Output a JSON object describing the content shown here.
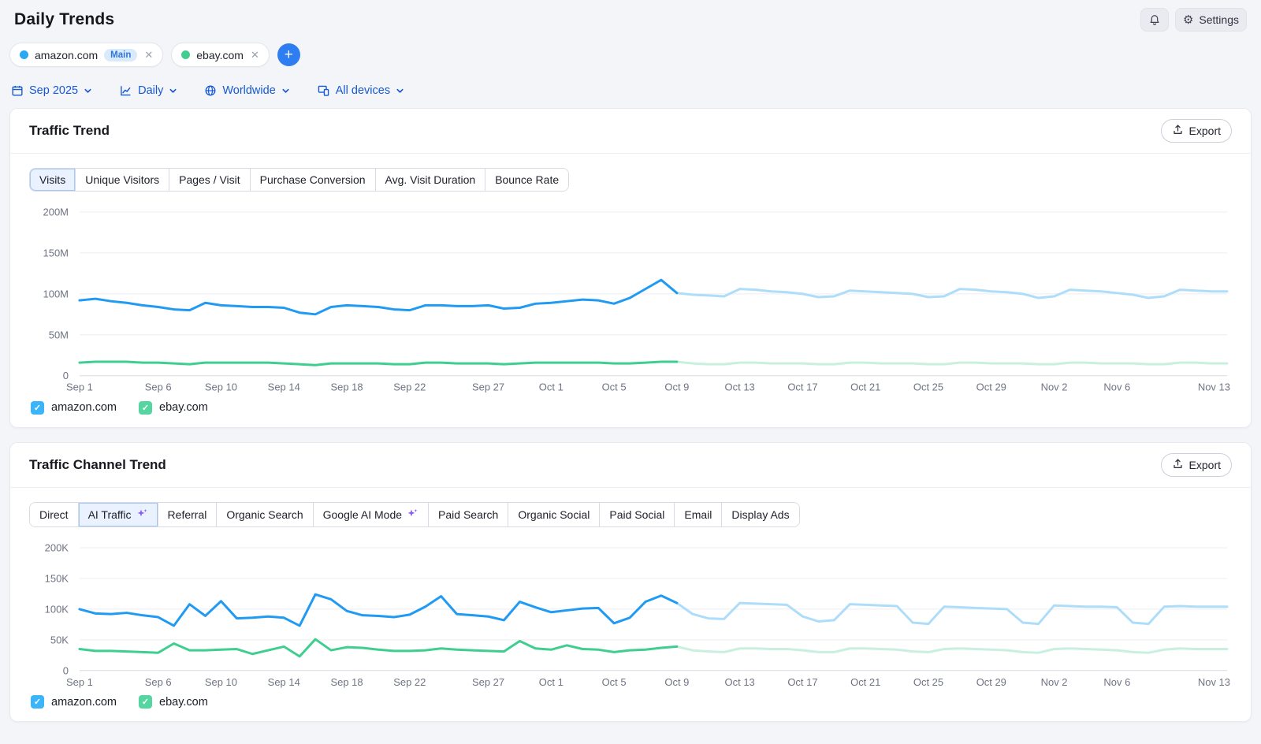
{
  "header": {
    "title": "Daily Trends",
    "settings_label": "Settings"
  },
  "chips": {
    "items": [
      {
        "label": "amazon.com",
        "dot_color": "#29a8f3",
        "badge": "Main",
        "close": "✕"
      },
      {
        "label": "ebay.com",
        "dot_color": "#41cd8f",
        "close": "✕"
      }
    ],
    "add_label": "+"
  },
  "filters": [
    {
      "icon": "calendar-icon",
      "label": "Sep 2025"
    },
    {
      "icon": "line-chart-icon",
      "label": "Daily"
    },
    {
      "icon": "globe-icon",
      "label": "Worldwide"
    },
    {
      "icon": "devices-icon",
      "label": "All devices"
    }
  ],
  "colors": {
    "accent_link_blue": "#1458d6",
    "add_button_blue": "#2e7ef2",
    "amazon_line": "#209af2",
    "amazon_forecast": "#aeddfa",
    "ebay_line": "#3fce90",
    "ebay_forecast": "#c9efde",
    "selected_tab_bg": "#e9f2fe",
    "sparkle_purple": "#8b5cf6",
    "main_badge_bg": "#d9eafc"
  },
  "card1": {
    "title": "Traffic Trend",
    "export_label": "Export",
    "tabs": [
      {
        "label": "Visits",
        "selected": true
      },
      {
        "label": "Unique Visitors",
        "selected": false
      },
      {
        "label": "Pages / Visit",
        "selected": false
      },
      {
        "label": "Purchase Conversion",
        "selected": false
      },
      {
        "label": "Avg. Visit Duration",
        "selected": false
      },
      {
        "label": "Bounce Rate",
        "selected": false
      }
    ]
  },
  "card2": {
    "title": "Traffic Channel Trend",
    "export_label": "Export",
    "tabs": [
      {
        "label": "Direct",
        "selected": false,
        "sparkle": false
      },
      {
        "label": "AI Traffic",
        "selected": true,
        "sparkle": true
      },
      {
        "label": "Referral",
        "selected": false,
        "sparkle": false
      },
      {
        "label": "Organic Search",
        "selected": false,
        "sparkle": false
      },
      {
        "label": "Google AI Mode",
        "selected": false,
        "sparkle": true
      },
      {
        "label": "Paid Search",
        "selected": false,
        "sparkle": false
      },
      {
        "label": "Organic Social",
        "selected": false,
        "sparkle": false
      },
      {
        "label": "Paid Social",
        "selected": false,
        "sparkle": false
      },
      {
        "label": "Email",
        "selected": false,
        "sparkle": false
      },
      {
        "label": "Display Ads",
        "selected": false,
        "sparkle": false
      }
    ]
  },
  "chart_data": [
    {
      "type": "line",
      "title": "Traffic Trend — Visits (daily)",
      "unit": "M",
      "ylim": [
        0,
        200
      ],
      "yticks": [
        0,
        50,
        100,
        150,
        200
      ],
      "ytick_labels": [
        "0",
        "50M",
        "100M",
        "150M",
        "200M"
      ],
      "x_range": [
        "Sep 1",
        "Nov 13"
      ],
      "xtick_labels": [
        "Sep 1",
        "Sep 6",
        "Sep 10",
        "Sep 14",
        "Sep 18",
        "Sep 22",
        "Sep 27",
        "Oct 1",
        "Oct 5",
        "Oct 9",
        "Oct 13",
        "Oct 17",
        "Oct 21",
        "Oct 25",
        "Oct 29",
        "Nov 2",
        "Nov 6",
        "Nov 13"
      ],
      "xtick_day_index": [
        0,
        5,
        9,
        13,
        17,
        21,
        26,
        30,
        34,
        38,
        42,
        46,
        50,
        54,
        58,
        62,
        66,
        73
      ],
      "forecast_from_index": 38,
      "grid": true,
      "legend_position": "bottom",
      "series": [
        {
          "name": "amazon.com",
          "color": "#209af2",
          "forecast_color": "#aeddfa",
          "values": [
            92,
            94,
            91,
            89,
            86,
            84,
            81,
            80,
            89,
            86,
            85,
            84,
            84,
            83,
            77,
            75,
            84,
            86,
            85,
            84,
            81,
            80,
            86,
            86,
            85,
            85,
            86,
            82,
            83,
            88,
            89,
            91,
            93,
            92,
            88,
            95,
            106,
            117,
            101,
            99,
            98,
            97,
            106,
            105,
            103,
            102,
            100,
            96,
            97,
            104,
            103,
            102,
            101,
            100,
            96,
            97,
            106,
            105,
            103,
            102,
            100,
            95,
            97,
            105,
            104,
            103,
            101,
            99,
            95,
            97,
            105,
            104,
            103,
            103
          ]
        },
        {
          "name": "ebay.com",
          "color": "#3fce90",
          "forecast_color": "#c9efde",
          "values": [
            16,
            17,
            17,
            17,
            16,
            16,
            15,
            14,
            16,
            16,
            16,
            16,
            16,
            15,
            14,
            13,
            15,
            15,
            15,
            15,
            14,
            14,
            16,
            16,
            15,
            15,
            15,
            14,
            15,
            16,
            16,
            16,
            16,
            16,
            15,
            15,
            16,
            17,
            17,
            15,
            14,
            14,
            16,
            16,
            15,
            15,
            15,
            14,
            14,
            16,
            16,
            15,
            15,
            15,
            14,
            14,
            16,
            16,
            15,
            15,
            15,
            14,
            14,
            16,
            16,
            15,
            15,
            15,
            14,
            14,
            16,
            16,
            15,
            15
          ]
        }
      ],
      "legend": [
        {
          "label": "amazon.com",
          "checked": true,
          "color": "#3ab5f9"
        },
        {
          "label": "ebay.com",
          "checked": true,
          "color": "#55d6a0"
        }
      ]
    },
    {
      "type": "line",
      "title": "Traffic Channel Trend — AI Traffic (daily)",
      "unit": "K",
      "ylim": [
        0,
        200
      ],
      "yticks": [
        0,
        50,
        100,
        150,
        200
      ],
      "ytick_labels": [
        "0",
        "50K",
        "100K",
        "150K",
        "200K"
      ],
      "x_range": [
        "Sep 1",
        "Nov 13"
      ],
      "xtick_labels": [
        "Sep 1",
        "Sep 6",
        "Sep 10",
        "Sep 14",
        "Sep 18",
        "Sep 22",
        "Sep 27",
        "Oct 1",
        "Oct 5",
        "Oct 9",
        "Oct 13",
        "Oct 17",
        "Oct 21",
        "Oct 25",
        "Oct 29",
        "Nov 2",
        "Nov 6",
        "Nov 13"
      ],
      "xtick_day_index": [
        0,
        5,
        9,
        13,
        17,
        21,
        26,
        30,
        34,
        38,
        42,
        46,
        50,
        54,
        58,
        62,
        66,
        73
      ],
      "forecast_from_index": 38,
      "grid": true,
      "legend_position": "bottom",
      "series": [
        {
          "name": "amazon.com",
          "color": "#209af2",
          "forecast_color": "#aeddfa",
          "values": [
            100,
            93,
            92,
            94,
            90,
            87,
            73,
            108,
            89,
            113,
            85,
            86,
            88,
            86,
            73,
            124,
            116,
            97,
            90,
            89,
            87,
            91,
            104,
            121,
            92,
            90,
            88,
            82,
            112,
            103,
            95,
            98,
            101,
            102,
            77,
            86,
            112,
            122,
            110,
            92,
            85,
            84,
            110,
            109,
            108,
            107,
            88,
            80,
            82,
            108,
            107,
            106,
            105,
            78,
            76,
            104,
            103,
            102,
            101,
            100,
            78,
            76,
            106,
            105,
            104,
            104,
            103,
            78,
            76,
            104,
            105,
            104,
            104,
            104
          ]
        },
        {
          "name": "ebay.com",
          "color": "#3fce90",
          "forecast_color": "#c9efde",
          "values": [
            35,
            32,
            32,
            31,
            30,
            29,
            44,
            33,
            33,
            34,
            35,
            27,
            33,
            39,
            23,
            51,
            33,
            38,
            37,
            34,
            32,
            32,
            33,
            36,
            34,
            33,
            32,
            31,
            48,
            36,
            34,
            41,
            35,
            34,
            30,
            33,
            34,
            37,
            39,
            33,
            31,
            30,
            36,
            36,
            35,
            35,
            33,
            30,
            30,
            36,
            36,
            35,
            34,
            31,
            30,
            35,
            36,
            35,
            34,
            33,
            30,
            29,
            35,
            36,
            35,
            34,
            33,
            30,
            29,
            34,
            36,
            35,
            35,
            35
          ]
        }
      ],
      "legend": [
        {
          "label": "amazon.com",
          "checked": true,
          "color": "#3ab5f9"
        },
        {
          "label": "ebay.com",
          "checked": true,
          "color": "#55d6a0"
        }
      ]
    }
  ]
}
